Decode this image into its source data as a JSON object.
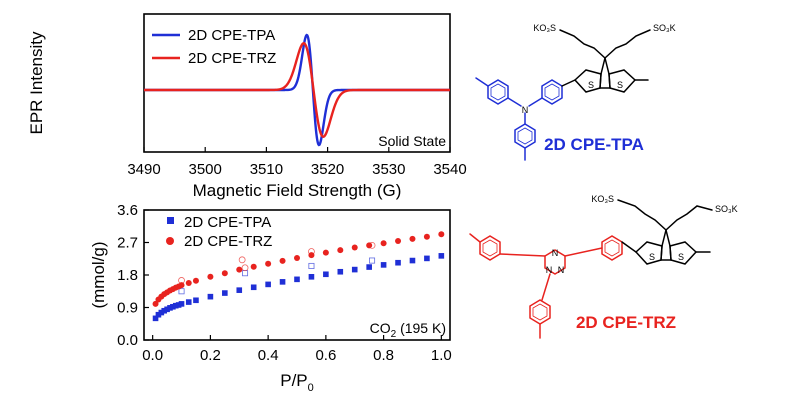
{
  "chart_data": [
    {
      "type": "line",
      "title": "",
      "xlabel": "Magnetic Field Strength (G)",
      "ylabel": "EPR Intensity",
      "xlim": [
        3490,
        3540
      ],
      "xticks": [
        "3490",
        "3500",
        "3510",
        "3520",
        "3530",
        "3540"
      ],
      "annotation": "Solid State",
      "legend_position": "top-left",
      "series": [
        {
          "name": "2D CPE-TPA",
          "color": "#1f2fd6",
          "center": 3517.6,
          "width": 1.0,
          "amplitude": 1.0
        },
        {
          "name": "2D CPE-TRZ",
          "color": "#e8231f",
          "center": 3517.7,
          "width": 1.6,
          "amplitude": 0.85
        }
      ]
    },
    {
      "type": "scatter",
      "title": "",
      "xlabel": "P/P",
      "xlabel_sub": "0",
      "ylabel": "(mmol/g)",
      "xlim": [
        -0.03,
        1.03
      ],
      "ylim": [
        0,
        3.6
      ],
      "xticks": [
        "0.0",
        "0.2",
        "0.4",
        "0.6",
        "0.8",
        "1.0"
      ],
      "yticks": [
        "0.0",
        "0.9",
        "1.8",
        "2.7",
        "3.6"
      ],
      "annotation": "CO",
      "annotation_sub": "2",
      "annotation_rest": " (195 K)",
      "legend_position": "top-left",
      "series": [
        {
          "name": "2D CPE-TPA",
          "color": "#1f2fd6",
          "marker": "square",
          "x": [
            0.01,
            0.02,
            0.03,
            0.04,
            0.05,
            0.06,
            0.07,
            0.08,
            0.09,
            0.1,
            0.125,
            0.15,
            0.2,
            0.25,
            0.3,
            0.35,
            0.4,
            0.45,
            0.5,
            0.55,
            0.6,
            0.65,
            0.7,
            0.75,
            0.8,
            0.85,
            0.9,
            0.95,
            1.0
          ],
          "y": [
            0.6,
            0.7,
            0.76,
            0.81,
            0.85,
            0.89,
            0.92,
            0.95,
            0.97,
            1.0,
            1.05,
            1.1,
            1.2,
            1.3,
            1.38,
            1.46,
            1.54,
            1.61,
            1.68,
            1.75,
            1.82,
            1.89,
            1.95,
            2.02,
            2.08,
            2.14,
            2.2,
            2.26,
            2.33
          ],
          "desorption_x": [
            0.1,
            0.32,
            0.55,
            0.76
          ],
          "desorption_y": [
            1.35,
            1.85,
            2.05,
            2.2
          ]
        },
        {
          "name": "2D CPE-TRZ",
          "color": "#e8231f",
          "marker": "circle",
          "x": [
            0.01,
            0.02,
            0.03,
            0.04,
            0.05,
            0.06,
            0.07,
            0.08,
            0.09,
            0.1,
            0.125,
            0.15,
            0.2,
            0.25,
            0.3,
            0.35,
            0.4,
            0.45,
            0.5,
            0.55,
            0.6,
            0.65,
            0.7,
            0.75,
            0.8,
            0.85,
            0.9,
            0.95,
            1.0
          ],
          "y": [
            1.0,
            1.12,
            1.2,
            1.27,
            1.32,
            1.37,
            1.41,
            1.45,
            1.48,
            1.52,
            1.58,
            1.64,
            1.75,
            1.85,
            1.95,
            2.03,
            2.11,
            2.19,
            2.27,
            2.35,
            2.42,
            2.49,
            2.56,
            2.62,
            2.68,
            2.74,
            2.8,
            2.86,
            2.93
          ],
          "desorption_x": [
            0.1,
            0.31,
            0.32,
            0.55,
            0.76
          ],
          "desorption_y": [
            1.65,
            2.22,
            2.0,
            2.45,
            2.62
          ]
        }
      ]
    }
  ],
  "structures": {
    "tpa_label": "2D CPE-TPA",
    "trz_label": "2D CPE-TRZ",
    "sulfonate_1": "KO₃S",
    "sulfonate_2": "SO₃K",
    "sulfur": "S",
    "nitrogen": "N",
    "tpa_color": "#1f2fd6",
    "trz_color": "#e8231f"
  }
}
